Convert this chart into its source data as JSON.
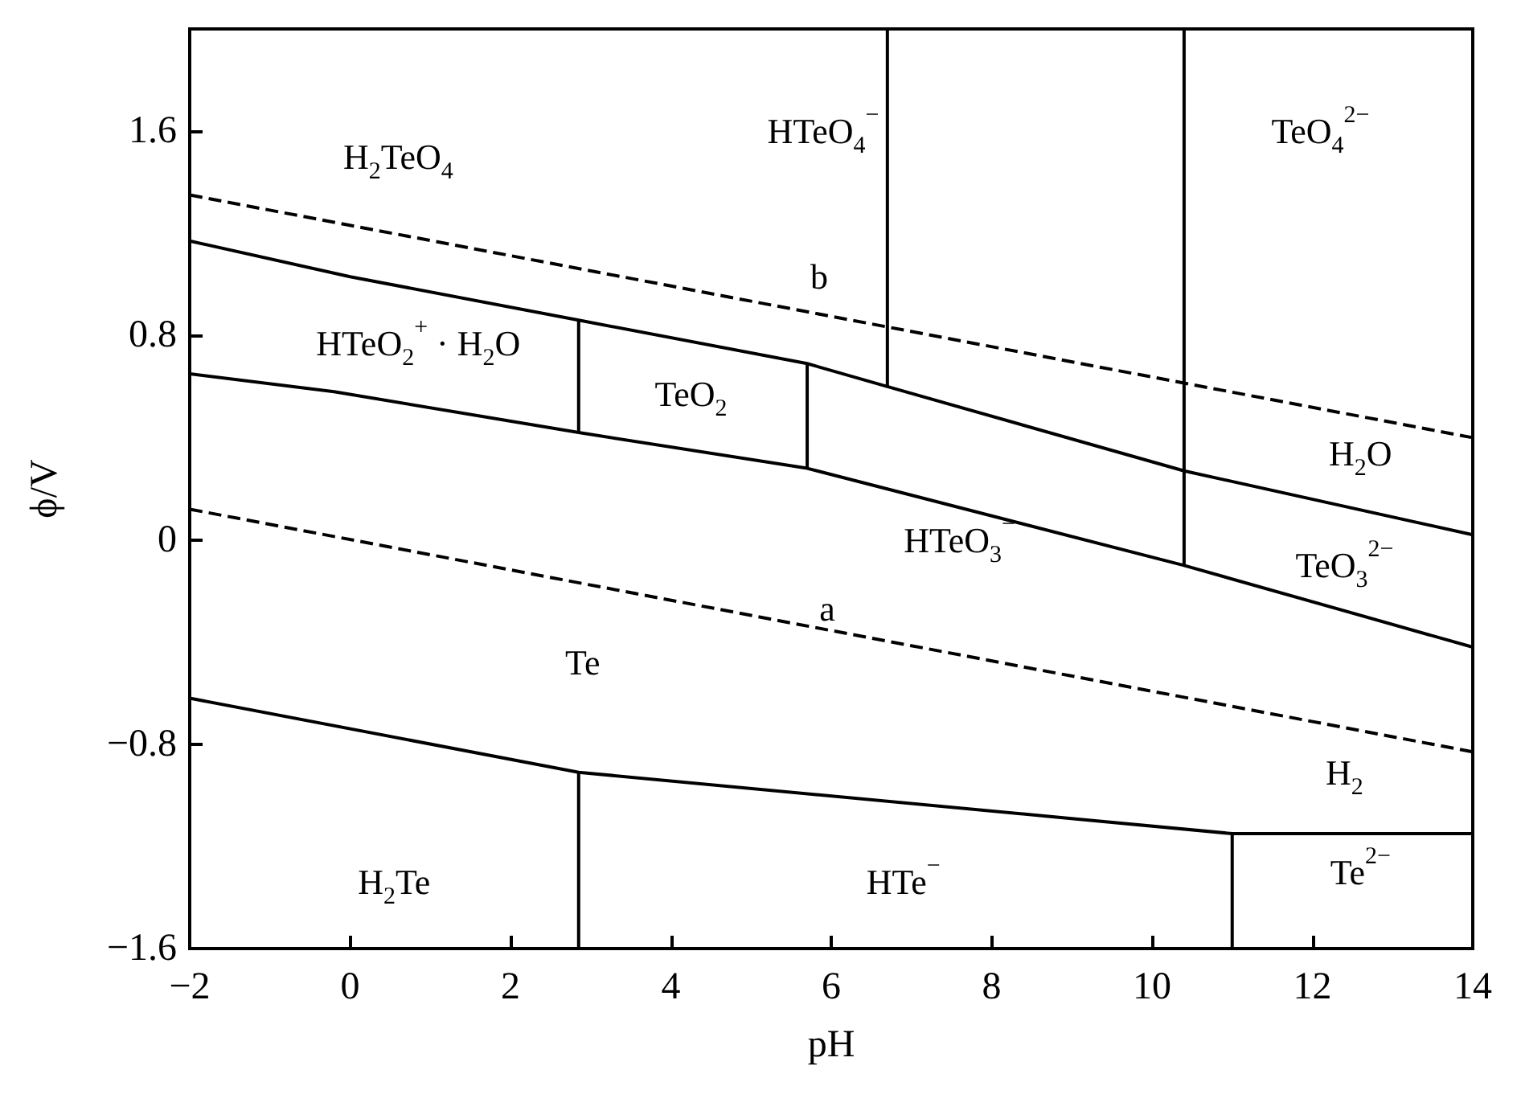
{
  "chart_data": {
    "type": "line",
    "xlabel": "pH",
    "ylabel": "ϕ/V",
    "xlim": [
      -2,
      14
    ],
    "ylim": [
      -1.6,
      2.0
    ],
    "xticks": [
      {
        "value": -2,
        "label": "−2"
      },
      0,
      2,
      4,
      6,
      8,
      10,
      12,
      14
    ],
    "yticks": [
      {
        "value": -1.6,
        "label": "−1.6"
      },
      {
        "value": -0.8,
        "label": "−0.8"
      },
      0,
      0.8,
      1.6
    ],
    "grid": false,
    "series": [
      {
        "color": "#000000",
        "line_style": "solid",
        "x": [
          -2,
          0,
          2.85,
          5.7,
          6.7,
          10.4,
          14
        ],
        "values": [
          1.17,
          1.03,
          0.86,
          0.69,
          0.6,
          0.27,
          0.02
        ]
      },
      {
        "color": "#000000",
        "line_style": "solid",
        "x": [
          -2,
          -0.2,
          2.85,
          5.7,
          10.4,
          14
        ],
        "values": [
          0.65,
          0.58,
          0.42,
          0.28,
          -0.1,
          -0.42
        ]
      },
      {
        "color": "#000000",
        "line_style": "solid",
        "x": [
          2.85,
          2.85
        ],
        "values": [
          0.42,
          0.86
        ]
      },
      {
        "color": "#000000",
        "line_style": "solid",
        "x": [
          5.7,
          5.7
        ],
        "values": [
          0.28,
          0.69
        ]
      },
      {
        "color": "#000000",
        "line_style": "solid",
        "x": [
          6.7,
          6.7
        ],
        "values": [
          0.6,
          2.0
        ]
      },
      {
        "color": "#000000",
        "line_style": "solid",
        "x": [
          10.4,
          10.4
        ],
        "values": [
          -0.1,
          2.0
        ]
      },
      {
        "color": "#000000",
        "line_style": "solid",
        "x": [
          -2,
          2.85,
          11,
          14
        ],
        "values": [
          -0.62,
          -0.91,
          -1.15,
          -1.15
        ]
      },
      {
        "color": "#000000",
        "line_style": "solid",
        "x": [
          2.85,
          2.85
        ],
        "values": [
          -0.91,
          -1.6
        ]
      },
      {
        "color": "#000000",
        "line_style": "solid",
        "x": [
          11,
          11
        ],
        "values": [
          -1.15,
          -1.6
        ]
      },
      {
        "color": "#000000",
        "line_style": "dashed",
        "x": [
          -2,
          14
        ],
        "values": [
          0.12,
          -0.83
        ]
      },
      {
        "color": "#000000",
        "line_style": "dashed",
        "x": [
          -2,
          14
        ],
        "values": [
          1.35,
          0.4
        ]
      }
    ],
    "annotations": [
      "H$_{2}$TeO$_{4}$",
      "HTeO$_{4}$$^{−}$",
      "TeO$_{4}$$^{2−}$",
      "b",
      "HTeO$_{2}$$^{+}$ · H$_{2}$O",
      "TeO$_{2}$",
      "HTeO$_{3}$$^{−}$",
      "H$_{2}$O",
      "TeO$_{3}$$^{2−}$",
      "a",
      "Te",
      "H$_{2}$",
      "H$_{2}$Te",
      "HTe$^{−}$",
      "Te$^{2−}$"
    ]
  }
}
